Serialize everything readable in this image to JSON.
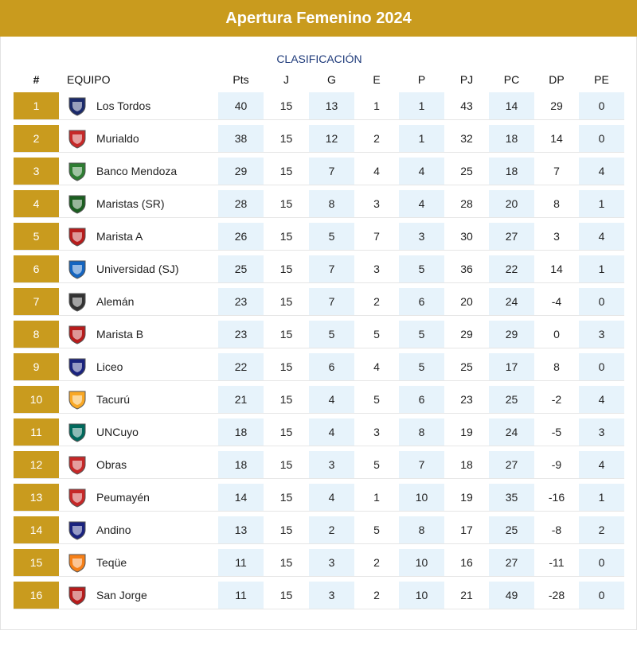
{
  "title": "Apertura Femenino 2024",
  "subtitle": "CLASIFICACIÓN",
  "columns": [
    "#",
    "EQUIPO",
    "Pts",
    "J",
    "G",
    "E",
    "P",
    "PJ",
    "PC",
    "DP",
    "PE"
  ],
  "colors": {
    "gold": "#c99b1e",
    "shade": "#e7f3fb",
    "subtitle": "#1e3a7a"
  },
  "rows": [
    {
      "pos": "1",
      "team": "Los Tordos",
      "logo": "los-tordos-crest-icon",
      "pts": "40",
      "j": "15",
      "g": "13",
      "e": "1",
      "p": "1",
      "pj": "43",
      "pc": "14",
      "dp": "29",
      "pe": "0"
    },
    {
      "pos": "2",
      "team": "Murialdo",
      "logo": "murialdo-crest-icon",
      "pts": "38",
      "j": "15",
      "g": "12",
      "e": "2",
      "p": "1",
      "pj": "32",
      "pc": "18",
      "dp": "14",
      "pe": "0"
    },
    {
      "pos": "3",
      "team": "Banco Mendoza",
      "logo": "banco-mendoza-crest-icon",
      "pts": "29",
      "j": "15",
      "g": "7",
      "e": "4",
      "p": "4",
      "pj": "25",
      "pc": "18",
      "dp": "7",
      "pe": "4"
    },
    {
      "pos": "4",
      "team": "Maristas (SR)",
      "logo": "maristas-sr-crest-icon",
      "pts": "28",
      "j": "15",
      "g": "8",
      "e": "3",
      "p": "4",
      "pj": "28",
      "pc": "20",
      "dp": "8",
      "pe": "1"
    },
    {
      "pos": "5",
      "team": "Marista A",
      "logo": "marista-crest-icon",
      "pts": "26",
      "j": "15",
      "g": "5",
      "e": "7",
      "p": "3",
      "pj": "30",
      "pc": "27",
      "dp": "3",
      "pe": "4"
    },
    {
      "pos": "6",
      "team": "Universidad (SJ)",
      "logo": "universidad-sj-crest-icon",
      "pts": "25",
      "j": "15",
      "g": "7",
      "e": "3",
      "p": "5",
      "pj": "36",
      "pc": "22",
      "dp": "14",
      "pe": "1"
    },
    {
      "pos": "7",
      "team": "Alemán",
      "logo": "aleman-crest-icon",
      "pts": "23",
      "j": "15",
      "g": "7",
      "e": "2",
      "p": "6",
      "pj": "20",
      "pc": "24",
      "dp": "-4",
      "pe": "0"
    },
    {
      "pos": "8",
      "team": "Marista B",
      "logo": "marista-crest-icon",
      "pts": "23",
      "j": "15",
      "g": "5",
      "e": "5",
      "p": "5",
      "pj": "29",
      "pc": "29",
      "dp": "0",
      "pe": "3"
    },
    {
      "pos": "9",
      "team": "Liceo",
      "logo": "liceo-crest-icon",
      "pts": "22",
      "j": "15",
      "g": "6",
      "e": "4",
      "p": "5",
      "pj": "25",
      "pc": "17",
      "dp": "8",
      "pe": "0"
    },
    {
      "pos": "10",
      "team": "Tacurú",
      "logo": "tacuru-crest-icon",
      "pts": "21",
      "j": "15",
      "g": "4",
      "e": "5",
      "p": "6",
      "pj": "23",
      "pc": "25",
      "dp": "-2",
      "pe": "4"
    },
    {
      "pos": "11",
      "team": "UNCuyo",
      "logo": "uncuyo-crest-icon",
      "pts": "18",
      "j": "15",
      "g": "4",
      "e": "3",
      "p": "8",
      "pj": "19",
      "pc": "24",
      "dp": "-5",
      "pe": "3"
    },
    {
      "pos": "12",
      "team": "Obras",
      "logo": "obras-crest-icon",
      "pts": "18",
      "j": "15",
      "g": "3",
      "e": "5",
      "p": "7",
      "pj": "18",
      "pc": "27",
      "dp": "-9",
      "pe": "4"
    },
    {
      "pos": "13",
      "team": "Peumayén",
      "logo": "peumayen-crest-icon",
      "pts": "14",
      "j": "15",
      "g": "4",
      "e": "1",
      "p": "10",
      "pj": "19",
      "pc": "35",
      "dp": "-16",
      "pe": "1"
    },
    {
      "pos": "14",
      "team": "Andino",
      "logo": "andino-crest-icon",
      "pts": "13",
      "j": "15",
      "g": "2",
      "e": "5",
      "p": "8",
      "pj": "17",
      "pc": "25",
      "dp": "-8",
      "pe": "2"
    },
    {
      "pos": "15",
      "team": "Teqüe",
      "logo": "teque-crest-icon",
      "pts": "11",
      "j": "15",
      "g": "3",
      "e": "2",
      "p": "10",
      "pj": "16",
      "pc": "27",
      "dp": "-11",
      "pe": "0"
    },
    {
      "pos": "16",
      "team": "San Jorge",
      "logo": "san-jorge-crest-icon",
      "pts": "11",
      "j": "15",
      "g": "3",
      "e": "2",
      "p": "10",
      "pj": "21",
      "pc": "49",
      "dp": "-28",
      "pe": "0"
    }
  ]
}
